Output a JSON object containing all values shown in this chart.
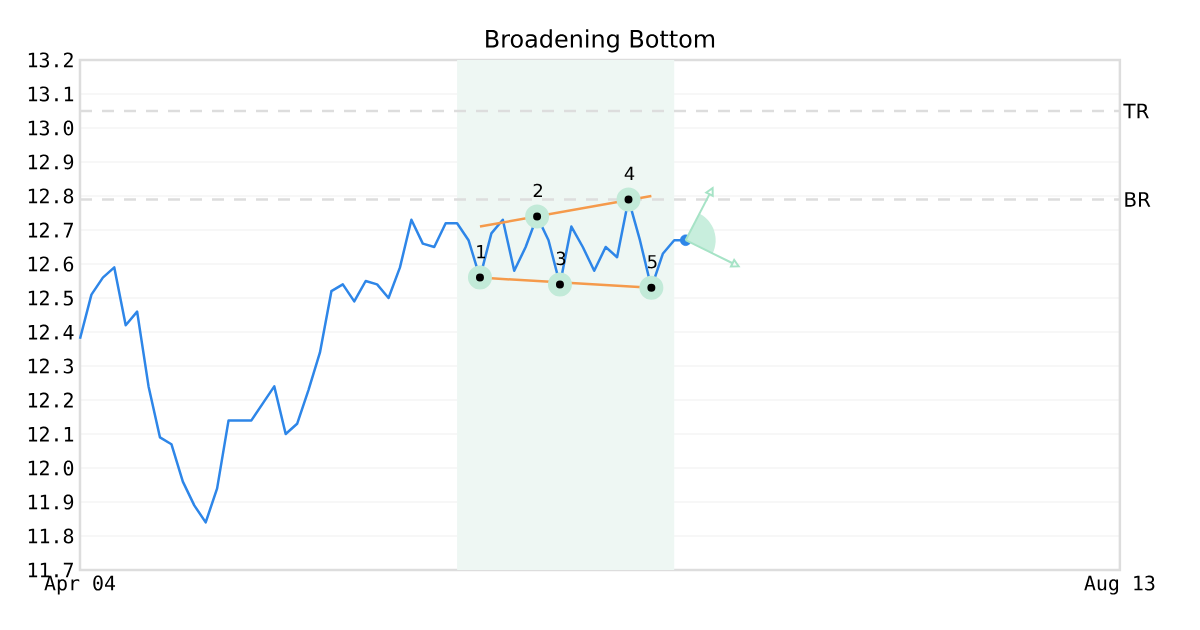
{
  "chart_data": {
    "type": "line",
    "title": "Broadening Bottom",
    "categories": [
      "Apr 04",
      null,
      null,
      null,
      null,
      null,
      null,
      null,
      null,
      null,
      null,
      null,
      null,
      null,
      null,
      null,
      null,
      null,
      null,
      null,
      null,
      null,
      null,
      null,
      null,
      null,
      null,
      null,
      null,
      null,
      null,
      null,
      null,
      null,
      null,
      null,
      null,
      null,
      null,
      null,
      null,
      null,
      null,
      null,
      null,
      null,
      null,
      null,
      null,
      null,
      null,
      null,
      null,
      null,
      null,
      null,
      null,
      null,
      null,
      null,
      null,
      null,
      null,
      null,
      null,
      null,
      null,
      null,
      null,
      null,
      null,
      null,
      null,
      null,
      null,
      null,
      null,
      null,
      null,
      null,
      null,
      null,
      null,
      null,
      null,
      null,
      null,
      null,
      null,
      null,
      null,
      "Aug 13"
    ],
    "ylim": [
      11.7,
      13.2
    ],
    "yticks": [
      11.7,
      11.8,
      11.9,
      {
        "value": 12.0,
        "label": "12.0"
      },
      12.1,
      12.2,
      12.3,
      12.4,
      12.5,
      12.6,
      12.7,
      12.8,
      12.9,
      {
        "value": 13.0,
        "label": "13.0"
      },
      13.1,
      13.2
    ],
    "grid": "y",
    "series": [
      {
        "color": "#2e86e8",
        "values": [
          12.38,
          12.51,
          12.56,
          12.59,
          12.42,
          12.46,
          12.24,
          12.09,
          12.07,
          11.96,
          11.89,
          11.84,
          11.94,
          12.14,
          12.14,
          12.14,
          12.19,
          12.24,
          12.1,
          12.13,
          12.23,
          12.34,
          12.52,
          12.54,
          12.49,
          12.55,
          12.54,
          12.5,
          12.59,
          12.73,
          12.66,
          12.65,
          12.72,
          12.72,
          12.67,
          12.56,
          12.69,
          12.73,
          12.58,
          12.65,
          12.74,
          12.67,
          12.54,
          12.71,
          12.65,
          12.58,
          12.65,
          12.62,
          12.79,
          12.67,
          12.53,
          12.63,
          12.67,
          12.67,
          null,
          null,
          null,
          null,
          null,
          null,
          null,
          null,
          null,
          null,
          null,
          null,
          null,
          null,
          null,
          null,
          null,
          null,
          null,
          null,
          null,
          null,
          null,
          null,
          null,
          null,
          null,
          null,
          null,
          null,
          null,
          null,
          null,
          null,
          null,
          null,
          null,
          null
        ]
      },
      {
        "type": "line",
        "color": "#f59a4b",
        "values": [
          null,
          null,
          null,
          null,
          null,
          null,
          null,
          null,
          null,
          null,
          null,
          null,
          null,
          null,
          null,
          null,
          null,
          null,
          null,
          null,
          null,
          null,
          null,
          null,
          null,
          null,
          null,
          null,
          null,
          null,
          null,
          null,
          null,
          null,
          null,
          12.71,
          null,
          null,
          null,
          null,
          null,
          null,
          null,
          null,
          null,
          null,
          null,
          null,
          null,
          null,
          12.8,
          null,
          null,
          null,
          null,
          null,
          null,
          null,
          null,
          null,
          null,
          null,
          null,
          null,
          null,
          null,
          null,
          null,
          null,
          null,
          null,
          null,
          null,
          null,
          null,
          null,
          null,
          null,
          null,
          null,
          null,
          null,
          null,
          null,
          null,
          null,
          null,
          null,
          null,
          null,
          null,
          null
        ]
      },
      {
        "type": "line",
        "color": "#f59a4b",
        "values": [
          null,
          null,
          null,
          null,
          null,
          null,
          null,
          null,
          null,
          null,
          null,
          null,
          null,
          null,
          null,
          null,
          null,
          null,
          null,
          null,
          null,
          null,
          null,
          null,
          null,
          null,
          null,
          null,
          null,
          null,
          null,
          null,
          null,
          null,
          null,
          12.56,
          null,
          null,
          null,
          null,
          null,
          null,
          null,
          null,
          null,
          null,
          null,
          null,
          null,
          null,
          12.53,
          null,
          null,
          null,
          null,
          null,
          null,
          null,
          null,
          null,
          null,
          null,
          null,
          null,
          null,
          null,
          null,
          null,
          null,
          null,
          null,
          null,
          null,
          null,
          null,
          null,
          null,
          null,
          null,
          null,
          null,
          null,
          null,
          null,
          null,
          null,
          null,
          null,
          null,
          null,
          null,
          null
        ]
      },
      {
        "type": "scatter",
        "marker": "circle",
        "color": "#000000",
        "values": [
          null,
          null,
          null,
          null,
          null,
          null,
          null,
          null,
          null,
          null,
          null,
          null,
          null,
          null,
          null,
          null,
          null,
          null,
          null,
          null,
          null,
          null,
          null,
          null,
          null,
          null,
          null,
          null,
          null,
          null,
          null,
          null,
          null,
          null,
          null,
          12.56,
          null,
          null,
          null,
          null,
          12.74,
          null,
          12.54,
          null,
          null,
          null,
          null,
          null,
          12.79,
          null,
          12.53,
          null,
          null,
          null,
          null,
          null,
          null,
          null,
          null,
          null,
          null,
          null,
          null,
          null,
          null,
          null,
          null,
          null,
          null,
          null,
          null,
          null,
          null,
          null,
          null,
          null,
          null,
          null,
          null,
          null,
          null,
          null,
          null,
          null,
          null,
          null,
          null,
          null,
          null,
          null,
          null,
          null
        ]
      },
      {
        "type": "scatter",
        "marker": "circle",
        "color": "#2e86e8",
        "values": [
          null,
          null,
          null,
          null,
          null,
          null,
          null,
          null,
          null,
          null,
          null,
          null,
          null,
          null,
          null,
          null,
          null,
          null,
          null,
          null,
          null,
          null,
          null,
          null,
          null,
          null,
          null,
          null,
          null,
          null,
          null,
          null,
          null,
          null,
          null,
          null,
          null,
          null,
          null,
          null,
          null,
          null,
          null,
          null,
          null,
          null,
          null,
          null,
          null,
          null,
          null,
          null,
          null,
          12.67,
          null,
          null,
          null,
          null,
          null,
          null,
          null,
          null,
          null,
          null,
          null,
          null,
          null,
          null,
          null,
          null,
          null,
          null,
          null,
          null,
          null,
          null,
          null,
          null,
          null,
          null,
          null,
          null,
          null,
          null,
          null,
          null,
          null,
          null,
          null,
          null,
          null,
          null
        ]
      }
    ],
    "ref_lines": [
      {
        "axis": "y",
        "value": 13.05,
        "label": "TR",
        "color": "#dddddd",
        "line_style": "dashed"
      },
      {
        "axis": "y",
        "value": 12.79,
        "label": "BR",
        "color": "#dddddd",
        "line_style": "dashed"
      }
    ],
    "annotations": [
      {
        "text": "1",
        "y": 12.56
      },
      {
        "text": "2",
        "y": 12.74
      },
      {
        "text": "3",
        "y": 12.54
      },
      {
        "text": "4",
        "y": 12.79
      },
      {
        "text": "5",
        "y": 12.53
      }
    ]
  }
}
